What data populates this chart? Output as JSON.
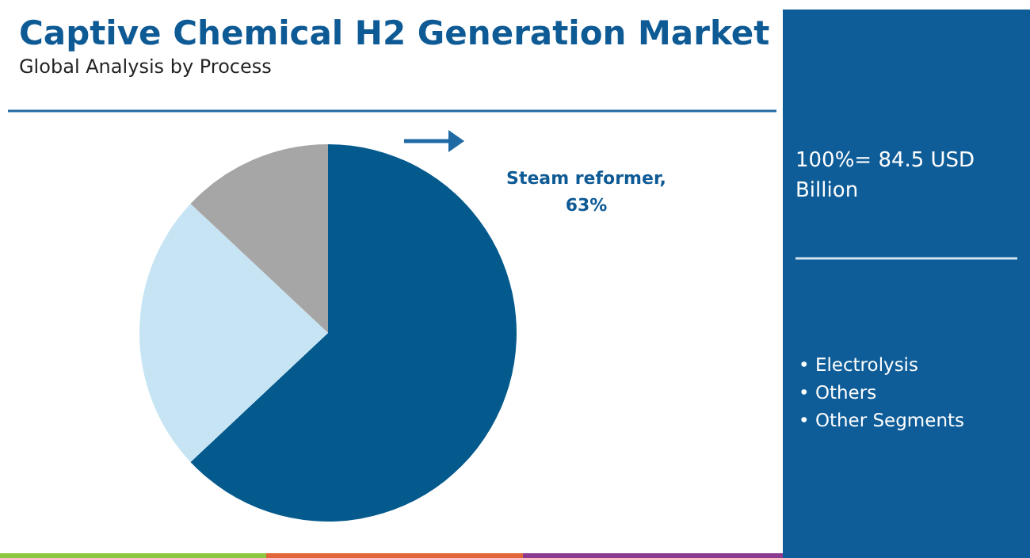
{
  "chart_data": {
    "type": "pie",
    "title": "Captive Chemical H2 Generation Market",
    "subtitle": "Global Analysis by Process",
    "categories": [
      null,
      null,
      null
    ],
    "values": [
      63,
      24,
      13
    ],
    "colors": [
      "#045a8d",
      "#c6e4f4",
      "#a6a6a6"
    ],
    "value_labels": [
      "Steam reformer, 63%",
      null,
      null
    ],
    "annotations": [
      "100%= 84.5 USD Billion",
      "• Electrolysis",
      "• Others",
      "• Other Segments"
    ]
  }
}
